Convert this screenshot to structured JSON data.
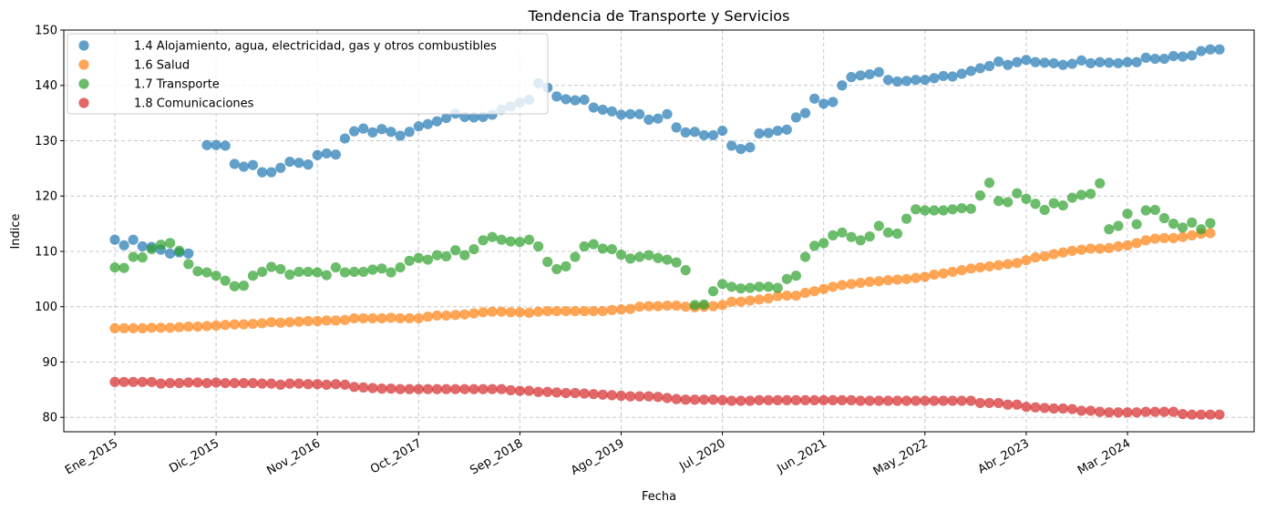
{
  "chart_data": {
    "type": "scatter",
    "title": "Tendencia de Transporte y Servicios",
    "xlabel": "Fecha",
    "ylabel": "Indice",
    "ylim": [
      77.4,
      150
    ],
    "yticks": [
      80,
      90,
      100,
      110,
      120,
      130,
      140,
      150
    ],
    "x_tick_labels": [
      "Ene_2015",
      "Dic_2015",
      "Nov_2016",
      "Oct_2017",
      "Sep_2018",
      "Ago_2019",
      "Jul_2020",
      "Jun_2021",
      "May_2022",
      "Abr_2023",
      "Mar_2024"
    ],
    "x_tick_index": [
      0,
      11,
      22,
      33,
      44,
      55,
      66,
      77,
      88,
      99,
      110
    ],
    "n_periods": 120,
    "grid": true,
    "legend_position": "top-left",
    "series": [
      {
        "name": "1.4 Alojamiento, agua, electricidad, gas y otros combustibles",
        "color": "#1f77b4",
        "values": [
          112.1,
          111.1,
          112.1,
          110.9,
          110.8,
          110.3,
          109.6,
          109.8,
          109.6,
          null,
          129.2,
          129.2,
          129.1,
          125.8,
          125.3,
          125.6,
          124.3,
          124.3,
          125.1,
          126.2,
          126.0,
          125.7,
          127.4,
          127.7,
          127.5,
          130.4,
          131.7,
          132.2,
          131.5,
          132.1,
          131.6,
          130.9,
          131.6,
          132.6,
          133.0,
          133.5,
          134.1,
          134.9,
          134.3,
          134.2,
          134.3,
          134.7,
          135.6,
          136.2,
          136.9,
          137.4,
          140.4,
          139.6,
          138.0,
          137.5,
          137.3,
          137.4,
          136.0,
          135.6,
          135.3,
          134.7,
          134.8,
          134.8,
          133.8,
          134.0,
          134.8,
          132.4,
          131.5,
          131.6,
          131.0,
          131.0,
          131.8,
          129.1,
          128.5,
          128.8,
          131.3,
          131.4,
          131.8,
          132.0,
          134.2,
          135.0,
          137.6,
          136.7,
          137.0,
          140.0,
          141.5,
          141.8,
          142.0,
          142.4,
          141.0,
          140.7,
          140.8,
          141.0,
          141.0,
          141.3,
          141.7,
          141.6,
          142.1,
          142.6,
          143.1,
          143.5,
          144.3,
          143.7,
          144.2,
          144.6,
          144.2,
          144.1,
          144.0,
          143.7,
          143.9,
          144.5,
          144.0,
          144.2,
          144.1,
          144.0,
          144.2,
          144.2,
          145.0,
          144.8,
          144.8,
          145.3,
          145.2,
          145.4,
          146.2,
          146.5,
          146.5
        ]
      },
      {
        "name": "1.6 Salud",
        "color": "#ff7f0e",
        "values": [
          96.1,
          96.1,
          96.1,
          96.1,
          96.2,
          96.2,
          96.2,
          96.3,
          96.4,
          96.4,
          96.5,
          96.6,
          96.7,
          96.8,
          96.8,
          96.9,
          97.0,
          97.2,
          97.1,
          97.2,
          97.3,
          97.4,
          97.4,
          97.5,
          97.5,
          97.6,
          97.9,
          97.9,
          97.9,
          97.9,
          98.0,
          97.9,
          97.9,
          97.9,
          98.2,
          98.4,
          98.4,
          98.5,
          98.6,
          98.8,
          99.0,
          99.1,
          99.1,
          99.0,
          99.0,
          98.9,
          99.1,
          99.2,
          99.2,
          99.2,
          99.2,
          99.2,
          99.2,
          99.2,
          99.4,
          99.5,
          99.6,
          100.0,
          100.1,
          100.1,
          100.2,
          100.2,
          100.0,
          99.9,
          100.0,
          100.1,
          100.3,
          100.9,
          100.9,
          101.1,
          101.3,
          101.5,
          101.9,
          102.0,
          102.0,
          102.5,
          102.8,
          103.2,
          103.6,
          103.9,
          104.1,
          104.3,
          104.5,
          104.6,
          104.8,
          104.9,
          105.0,
          105.2,
          105.4,
          105.8,
          106.0,
          106.3,
          106.6,
          106.9,
          107.1,
          107.3,
          107.5,
          107.7,
          107.9,
          108.4,
          108.9,
          109.1,
          109.5,
          109.8,
          110.1,
          110.3,
          110.5,
          110.5,
          110.6,
          110.9,
          111.1,
          111.5,
          112.0,
          112.3,
          112.4,
          112.4,
          112.6,
          112.9,
          113.2,
          113.3
        ]
      },
      {
        "name": "1.7 Transporte",
        "color": "#2ca02c",
        "values": [
          107.1,
          107.0,
          109.0,
          108.9,
          110.4,
          111.2,
          111.5,
          110.1,
          107.7,
          106.4,
          106.2,
          105.6,
          104.7,
          103.7,
          103.8,
          105.6,
          106.3,
          107.2,
          106.8,
          105.8,
          106.3,
          106.3,
          106.2,
          105.7,
          107.1,
          106.2,
          106.3,
          106.3,
          106.7,
          106.9,
          106.2,
          107.1,
          108.3,
          108.8,
          108.5,
          109.3,
          109.1,
          110.2,
          109.3,
          110.4,
          112.0,
          112.6,
          112.1,
          111.8,
          111.7,
          112.1,
          110.9,
          108.1,
          106.8,
          107.3,
          109.0,
          110.9,
          111.3,
          110.5,
          110.4,
          109.4,
          108.7,
          109.0,
          109.3,
          108.8,
          108.5,
          108.0,
          106.6,
          100.3,
          100.4,
          102.8,
          104.1,
          103.6,
          103.3,
          103.4,
          103.6,
          103.6,
          103.4,
          105.0,
          105.6,
          109.0,
          111.0,
          111.5,
          112.9,
          113.4,
          112.6,
          112.0,
          112.7,
          114.6,
          113.4,
          113.2,
          115.9,
          117.6,
          117.4,
          117.4,
          117.4,
          117.6,
          117.8,
          117.7,
          120.1,
          122.4,
          119.1,
          118.9,
          120.5,
          119.5,
          118.6,
          117.5,
          118.7,
          118.3,
          119.7,
          120.2,
          120.4,
          122.3,
          114.0,
          114.6,
          116.8,
          114.9,
          117.4,
          117.5,
          116.0,
          115.0,
          114.3,
          115.2,
          114.0,
          115.1
        ]
      },
      {
        "name": "1.8 Comunicaciones",
        "color": "#d62728",
        "values": [
          86.4,
          86.4,
          86.4,
          86.4,
          86.4,
          86.1,
          86.2,
          86.2,
          86.3,
          86.3,
          86.2,
          86.3,
          86.2,
          86.2,
          86.2,
          86.2,
          86.1,
          86.1,
          85.9,
          86.1,
          86.1,
          86.0,
          86.0,
          85.9,
          86.0,
          85.9,
          85.5,
          85.4,
          85.3,
          85.2,
          85.2,
          85.1,
          85.1,
          85.1,
          85.1,
          85.1,
          85.1,
          85.1,
          85.1,
          85.1,
          85.1,
          85.1,
          85.1,
          84.9,
          84.8,
          84.8,
          84.6,
          84.6,
          84.5,
          84.4,
          84.4,
          84.3,
          84.2,
          84.1,
          84.0,
          83.9,
          83.8,
          83.8,
          83.8,
          83.7,
          83.5,
          83.3,
          83.2,
          83.2,
          83.2,
          83.2,
          83.1,
          83.0,
          83.0,
          83.0,
          83.1,
          83.1,
          83.1,
          83.1,
          83.1,
          83.1,
          83.1,
          83.1,
          83.1,
          83.1,
          83.1,
          83.0,
          83.0,
          83.0,
          83.0,
          83.0,
          83.0,
          83.0,
          83.0,
          83.0,
          83.0,
          83.0,
          83.0,
          83.0,
          82.6,
          82.6,
          82.6,
          82.3,
          82.3,
          81.9,
          81.8,
          81.7,
          81.6,
          81.6,
          81.5,
          81.2,
          81.2,
          81.0,
          80.9,
          80.9,
          80.9,
          80.9,
          81.0,
          81.0,
          81.0,
          81.0,
          80.6,
          80.5,
          80.5,
          80.5,
          80.5
        ]
      }
    ]
  }
}
